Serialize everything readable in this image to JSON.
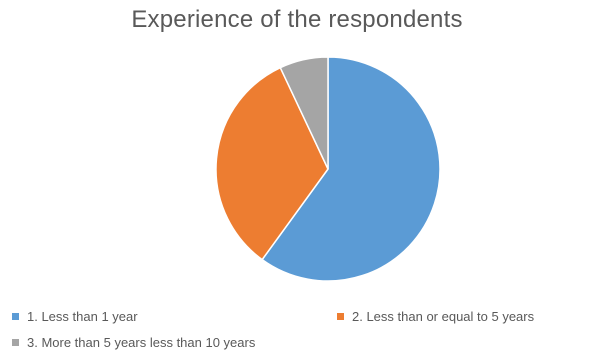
{
  "chart_data": {
    "type": "pie",
    "title": "Experience of the respondents",
    "categories": [
      "1.  Less than 1 year",
      "2.  Less than or equal to 5 years",
      "3.  More than 5 years less than 10 years"
    ],
    "values": [
      60,
      33,
      7
    ],
    "colors": [
      "#5B9BD5",
      "#ED7D31",
      "#A5A5A5"
    ],
    "legend_position": "bottom"
  }
}
